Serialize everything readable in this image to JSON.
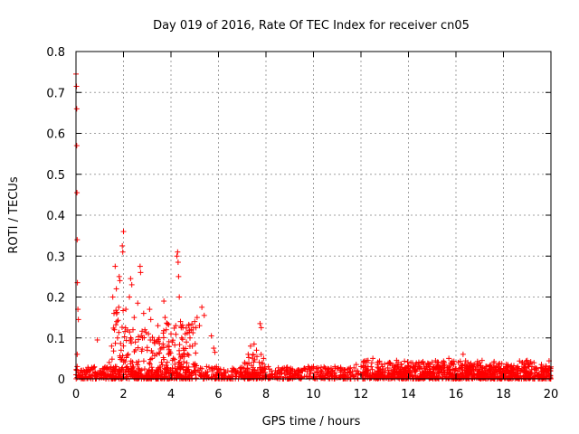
{
  "chart_data": {
    "type": "scatter",
    "title": "Day 019 of 2016, Rate Of TEC Index for receiver cn05",
    "xlabel": "GPS time / hours",
    "ylabel": "ROTI / TECUs",
    "xlim": [
      0,
      20
    ],
    "ylim": [
      0,
      0.8
    ],
    "xticks": [
      "0",
      "2",
      "4",
      "6",
      "8",
      "10",
      "12",
      "14",
      "16",
      "18",
      "20"
    ],
    "yticks": [
      "0",
      "0.1",
      "0.2",
      "0.3",
      "0.4",
      "0.5",
      "0.6",
      "0.7",
      "0.8"
    ],
    "grid": true,
    "marker": "+",
    "color": "#ff0000",
    "series": [
      {
        "name": "ROTI",
        "points": [
          [
            0.0,
            0.745
          ],
          [
            0.02,
            0.715
          ],
          [
            0.03,
            0.66
          ],
          [
            0.03,
            0.57
          ],
          [
            0.04,
            0.455
          ],
          [
            0.05,
            0.34
          ],
          [
            0.06,
            0.235
          ],
          [
            0.08,
            0.17
          ],
          [
            0.1,
            0.145
          ],
          [
            0.05,
            0.06
          ],
          [
            0.05,
            0.03
          ],
          [
            0.1,
            0.015
          ],
          [
            0.2,
            0.02
          ],
          [
            0.3,
            0.01
          ],
          [
            0.45,
            0.015
          ],
          [
            0.6,
            0.02
          ],
          [
            0.8,
            0.015
          ],
          [
            0.9,
            0.095
          ],
          [
            1.0,
            0.02
          ],
          [
            1.1,
            0.01
          ],
          [
            1.3,
            0.025
          ],
          [
            1.4,
            0.04
          ],
          [
            1.5,
            0.08
          ],
          [
            1.55,
            0.2
          ],
          [
            1.6,
            0.16
          ],
          [
            1.62,
            0.12
          ],
          [
            1.65,
            0.275
          ],
          [
            1.7,
            0.22
          ],
          [
            1.72,
            0.14
          ],
          [
            1.75,
            0.1
          ],
          [
            1.8,
            0.175
          ],
          [
            1.82,
            0.25
          ],
          [
            1.85,
            0.24
          ],
          [
            1.9,
            0.07
          ],
          [
            1.95,
            0.325
          ],
          [
            1.97,
            0.31
          ],
          [
            2.0,
            0.36
          ],
          [
            2.02,
            0.045
          ],
          [
            2.1,
            0.17
          ],
          [
            2.15,
            0.03
          ],
          [
            2.2,
            0.06
          ],
          [
            2.25,
            0.2
          ],
          [
            2.3,
            0.245
          ],
          [
            2.35,
            0.23
          ],
          [
            2.4,
            0.12
          ],
          [
            2.45,
            0.15
          ],
          [
            2.5,
            0.09
          ],
          [
            2.55,
            0.04
          ],
          [
            2.6,
            0.185
          ],
          [
            2.7,
            0.275
          ],
          [
            2.72,
            0.26
          ],
          [
            2.8,
            0.1
          ],
          [
            2.85,
            0.16
          ],
          [
            2.9,
            0.12
          ],
          [
            3.0,
            0.07
          ],
          [
            3.05,
            0.11
          ],
          [
            3.1,
            0.17
          ],
          [
            3.15,
            0.145
          ],
          [
            3.2,
            0.05
          ],
          [
            3.3,
            0.09
          ],
          [
            3.4,
            0.06
          ],
          [
            3.45,
            0.13
          ],
          [
            3.5,
            0.1
          ],
          [
            3.6,
            0.04
          ],
          [
            3.7,
            0.19
          ],
          [
            3.75,
            0.15
          ],
          [
            3.8,
            0.12
          ],
          [
            3.85,
            0.08
          ],
          [
            3.9,
            0.06
          ],
          [
            4.0,
            0.11
          ],
          [
            4.05,
            0.09
          ],
          [
            4.1,
            0.05
          ],
          [
            4.2,
            0.13
          ],
          [
            4.25,
            0.3
          ],
          [
            4.28,
            0.31
          ],
          [
            4.3,
            0.285
          ],
          [
            4.32,
            0.25
          ],
          [
            4.35,
            0.2
          ],
          [
            4.4,
            0.14
          ],
          [
            4.45,
            0.1
          ],
          [
            4.5,
            0.125
          ],
          [
            4.55,
            0.07
          ],
          [
            4.6,
            0.11
          ],
          [
            4.65,
            0.09
          ],
          [
            4.7,
            0.06
          ],
          [
            4.75,
            0.13
          ],
          [
            4.8,
            0.1
          ],
          [
            4.85,
            0.12
          ],
          [
            4.9,
            0.08
          ],
          [
            5.0,
            0.14
          ],
          [
            5.05,
            0.125
          ],
          [
            5.1,
            0.15
          ],
          [
            5.2,
            0.13
          ],
          [
            5.3,
            0.175
          ],
          [
            5.4,
            0.155
          ],
          [
            5.5,
            0.03
          ],
          [
            5.7,
            0.105
          ],
          [
            5.8,
            0.075
          ],
          [
            5.85,
            0.065
          ],
          [
            6.0,
            0.025
          ],
          [
            6.3,
            0.015
          ],
          [
            6.6,
            0.02
          ],
          [
            6.9,
            0.025
          ],
          [
            7.1,
            0.04
          ],
          [
            7.25,
            0.06
          ],
          [
            7.35,
            0.08
          ],
          [
            7.5,
            0.085
          ],
          [
            7.6,
            0.07
          ],
          [
            7.75,
            0.135
          ],
          [
            7.8,
            0.125
          ],
          [
            7.9,
            0.05
          ],
          [
            8.1,
            0.03
          ],
          [
            8.4,
            0.02
          ],
          [
            8.7,
            0.025
          ],
          [
            9.0,
            0.015
          ],
          [
            9.3,
            0.02
          ],
          [
            9.6,
            0.025
          ],
          [
            10.0,
            0.03
          ],
          [
            10.3,
            0.02
          ],
          [
            10.6,
            0.025
          ],
          [
            10.9,
            0.03
          ],
          [
            11.2,
            0.02
          ],
          [
            11.5,
            0.025
          ],
          [
            11.8,
            0.035
          ],
          [
            12.1,
            0.04
          ],
          [
            12.3,
            0.045
          ],
          [
            12.5,
            0.05
          ],
          [
            12.7,
            0.035
          ],
          [
            12.9,
            0.03
          ],
          [
            13.2,
            0.04
          ],
          [
            13.5,
            0.045
          ],
          [
            13.7,
            0.035
          ],
          [
            14.0,
            0.03
          ],
          [
            14.3,
            0.035
          ],
          [
            14.6,
            0.04
          ],
          [
            14.9,
            0.03
          ],
          [
            15.2,
            0.035
          ],
          [
            15.5,
            0.04
          ],
          [
            15.7,
            0.05
          ],
          [
            15.9,
            0.035
          ],
          [
            16.1,
            0.04
          ],
          [
            16.3,
            0.06
          ],
          [
            16.5,
            0.04
          ],
          [
            16.7,
            0.03
          ],
          [
            16.9,
            0.035
          ],
          [
            17.1,
            0.045
          ],
          [
            17.3,
            0.03
          ],
          [
            17.5,
            0.025
          ],
          [
            17.7,
            0.03
          ],
          [
            17.9,
            0.025
          ],
          [
            18.1,
            0.03
          ],
          [
            18.4,
            0.025
          ],
          [
            18.6,
            0.03
          ],
          [
            18.8,
            0.04
          ],
          [
            19.0,
            0.045
          ],
          [
            19.2,
            0.03
          ],
          [
            19.4,
            0.025
          ],
          [
            19.6,
            0.035
          ],
          [
            19.8,
            0.03
          ]
        ]
      }
    ],
    "dense_band": [
      {
        "x0": 0.0,
        "x1": 20.0,
        "ymin": 0.0,
        "ymax": 0.03
      },
      {
        "x0": 1.5,
        "x1": 2.3,
        "ymin": 0.0,
        "ymax": 0.17
      },
      {
        "x0": 2.3,
        "x1": 3.5,
        "ymin": 0.0,
        "ymax": 0.12
      },
      {
        "x0": 3.5,
        "x1": 5.1,
        "ymin": 0.0,
        "ymax": 0.14
      },
      {
        "x0": 7.1,
        "x1": 7.9,
        "ymin": 0.0,
        "ymax": 0.06
      },
      {
        "x0": 12.0,
        "x1": 20.0,
        "ymin": 0.0,
        "ymax": 0.045
      }
    ]
  }
}
